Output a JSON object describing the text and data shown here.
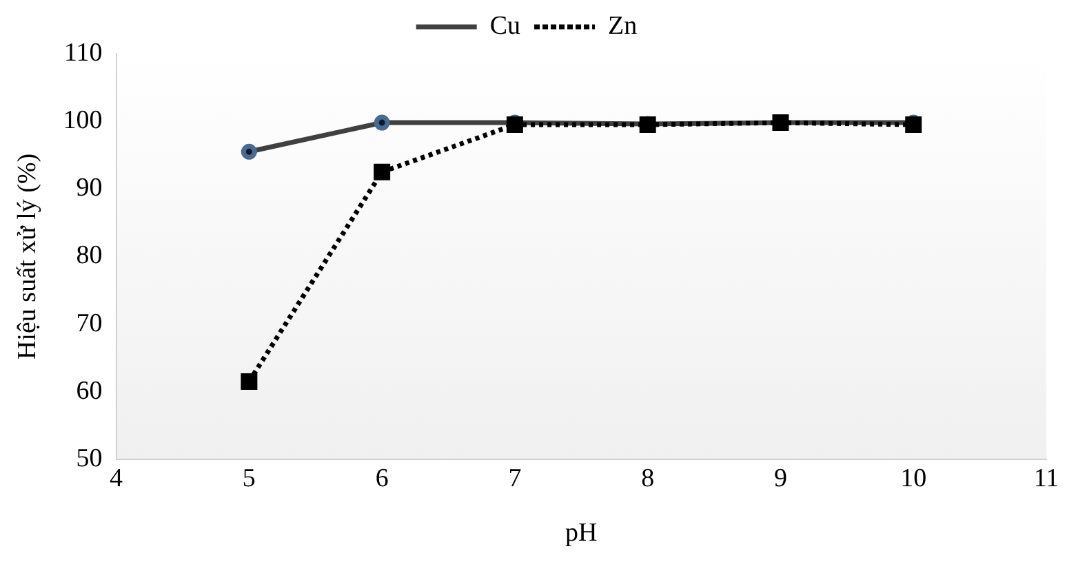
{
  "chart_data": {
    "type": "line",
    "xlabel": "pH",
    "ylabel": "Hiệu suất xử lý (%)",
    "x": [
      5,
      6,
      7,
      8,
      9,
      10
    ],
    "xlim": [
      4,
      11
    ],
    "xticks": [
      4,
      5,
      6,
      7,
      8,
      9,
      10,
      11
    ],
    "ylim": [
      50,
      110
    ],
    "yticks": [
      50,
      60,
      70,
      80,
      90,
      100,
      110
    ],
    "grid": false,
    "legend": "top",
    "series": [
      {
        "name": "Cu",
        "color": "#404040",
        "values": [
          95.5,
          99.8,
          99.8,
          99.6,
          99.8,
          99.8
        ],
        "marker": "circle",
        "line_style": "solid"
      },
      {
        "name": "Zn",
        "color": "#000000",
        "values": [
          61.5,
          92.5,
          99.5,
          99.5,
          99.8,
          99.5
        ],
        "marker": "square",
        "line_style": "dotted"
      }
    ]
  }
}
